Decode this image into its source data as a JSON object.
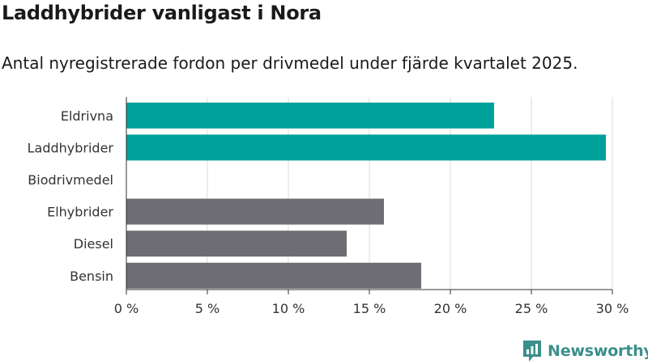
{
  "header": {
    "title": "Laddhybrider vanligast i Nora",
    "subtitle": "Antal nyregistrerade fordon per drivmedel under fjärde kvartalet 2025."
  },
  "chart_data": {
    "type": "bar",
    "orientation": "horizontal",
    "title": "Laddhybrider vanligast i Nora",
    "subtitle": "Antal nyregistrerade fordon per drivmedel under fjärde kvartalet 2025.",
    "categories": [
      "Eldrivna",
      "Laddhybrider",
      "Biodrivmedel",
      "Elhybrider",
      "Diesel",
      "Bensin"
    ],
    "values": [
      22.7,
      29.6,
      0,
      15.9,
      13.6,
      18.2
    ],
    "bar_colors": [
      "#00a19a",
      "#00a19a",
      "#00a19a",
      "#6d6d73",
      "#6d6d73",
      "#6d6d73"
    ],
    "xlim": [
      0,
      30
    ],
    "xticks": [
      0,
      5,
      10,
      15,
      20,
      25,
      30
    ],
    "xtick_labels": [
      "0 %",
      "5 %",
      "10 %",
      "15 %",
      "20 %",
      "25 %",
      "30 %"
    ],
    "xlabel": "",
    "ylabel": "",
    "grid": true
  },
  "branding": {
    "name": "Newsworthy",
    "icon": "newsworthy-logo-icon",
    "color": "#3b8f8a"
  }
}
